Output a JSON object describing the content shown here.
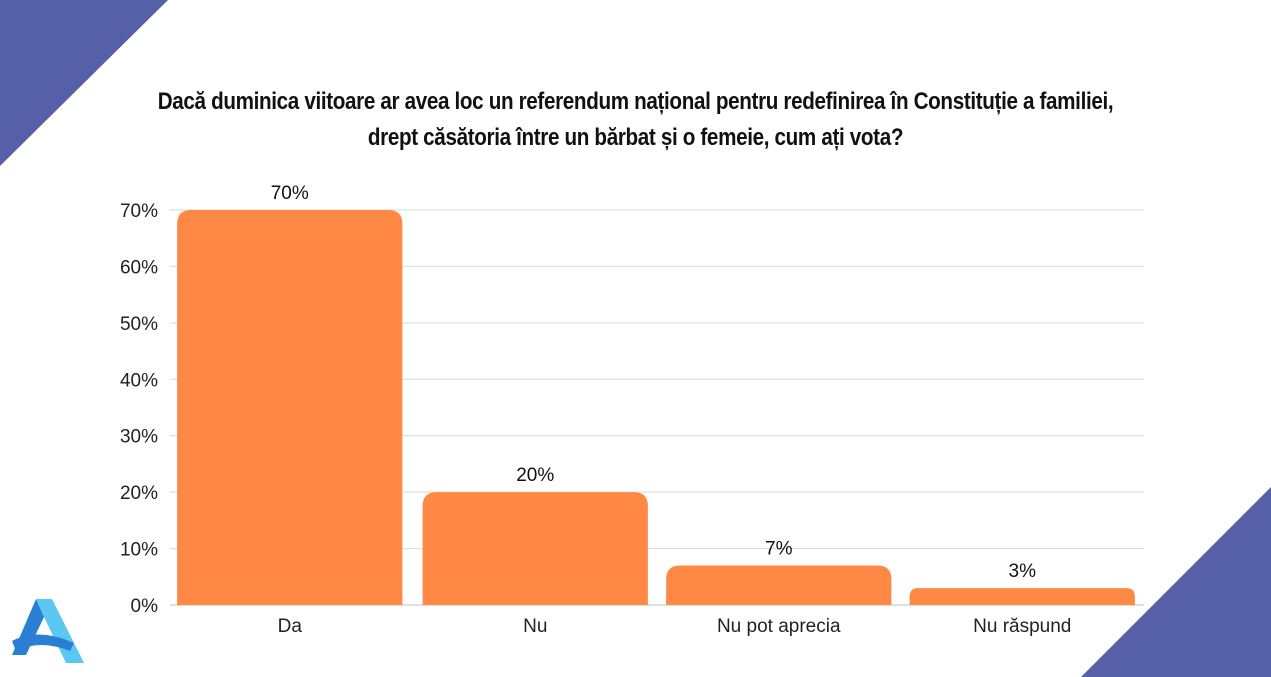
{
  "title_lines": [
    "Dacă duminica viitoare ar avea loc un referendum național pentru redefinirea în Constituție a familiei,",
    "drept căsătoria între un bărbat și o femeie, cum ați vota?"
  ],
  "colors": {
    "bar": "#FF8845",
    "corner": "#5660A8",
    "grid": "#D9D9D9",
    "logo_light": "#5BC8F2",
    "logo_dark": "#2A7FD4"
  },
  "chart_data": {
    "type": "bar",
    "title": "Dacă duminica viitoare ar avea loc un referendum național pentru redefinirea în Constituție a familiei, drept căsătoria între un bărbat și o femeie, cum ați vota?",
    "categories": [
      "Da",
      "Nu",
      "Nu pot aprecia",
      "Nu răspund"
    ],
    "values": [
      70,
      20,
      7,
      3
    ],
    "value_labels": [
      "70%",
      "20%",
      "7%",
      "3%"
    ],
    "yticks": [
      "0%",
      "10%",
      "20%",
      "30%",
      "40%",
      "50%",
      "60%",
      "70%"
    ],
    "ylim": [
      0,
      70
    ],
    "grid": true,
    "legend": "none"
  }
}
